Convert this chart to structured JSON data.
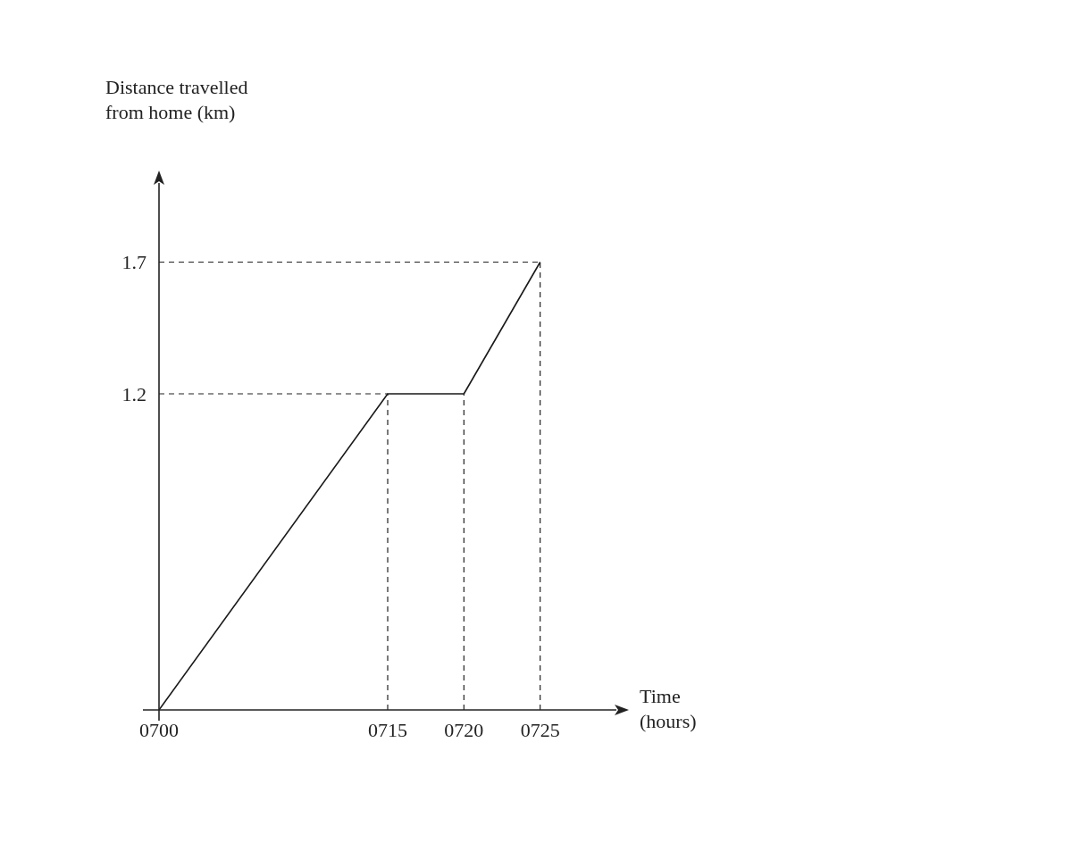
{
  "chart_data": {
    "type": "line",
    "xlabel": "Time (hours)",
    "ylabel": "Distance travelled from home (km)",
    "x": [
      700,
      715,
      720,
      725
    ],
    "series": [
      {
        "color": "#1a1a1a",
        "values": [
          0,
          1.2,
          1.2,
          1.7
        ]
      }
    ],
    "xlim": [
      700,
      730
    ],
    "ylim": [
      0,
      2
    ],
    "xticks": [
      {
        "value": 700,
        "label": "0700"
      },
      {
        "value": 715,
        "label": "0715"
      },
      {
        "value": 720,
        "label": "0720"
      },
      {
        "value": 725,
        "label": "0725"
      }
    ],
    "yticks": [
      1.2,
      1.7
    ],
    "ref_lines": [
      {
        "axis": "y",
        "value": 1.2,
        "line_style": "dashed"
      },
      {
        "axis": "y",
        "value": 1.7,
        "line_style": "dashed"
      },
      {
        "axis": "x",
        "value": 715,
        "line_style": "dashed"
      },
      {
        "axis": "x",
        "value": 720,
        "line_style": "dashed"
      },
      {
        "axis": "x",
        "value": 725,
        "line_style": "dashed"
      }
    ],
    "grid": false,
    "marker": "none",
    "line_style": "solid"
  }
}
